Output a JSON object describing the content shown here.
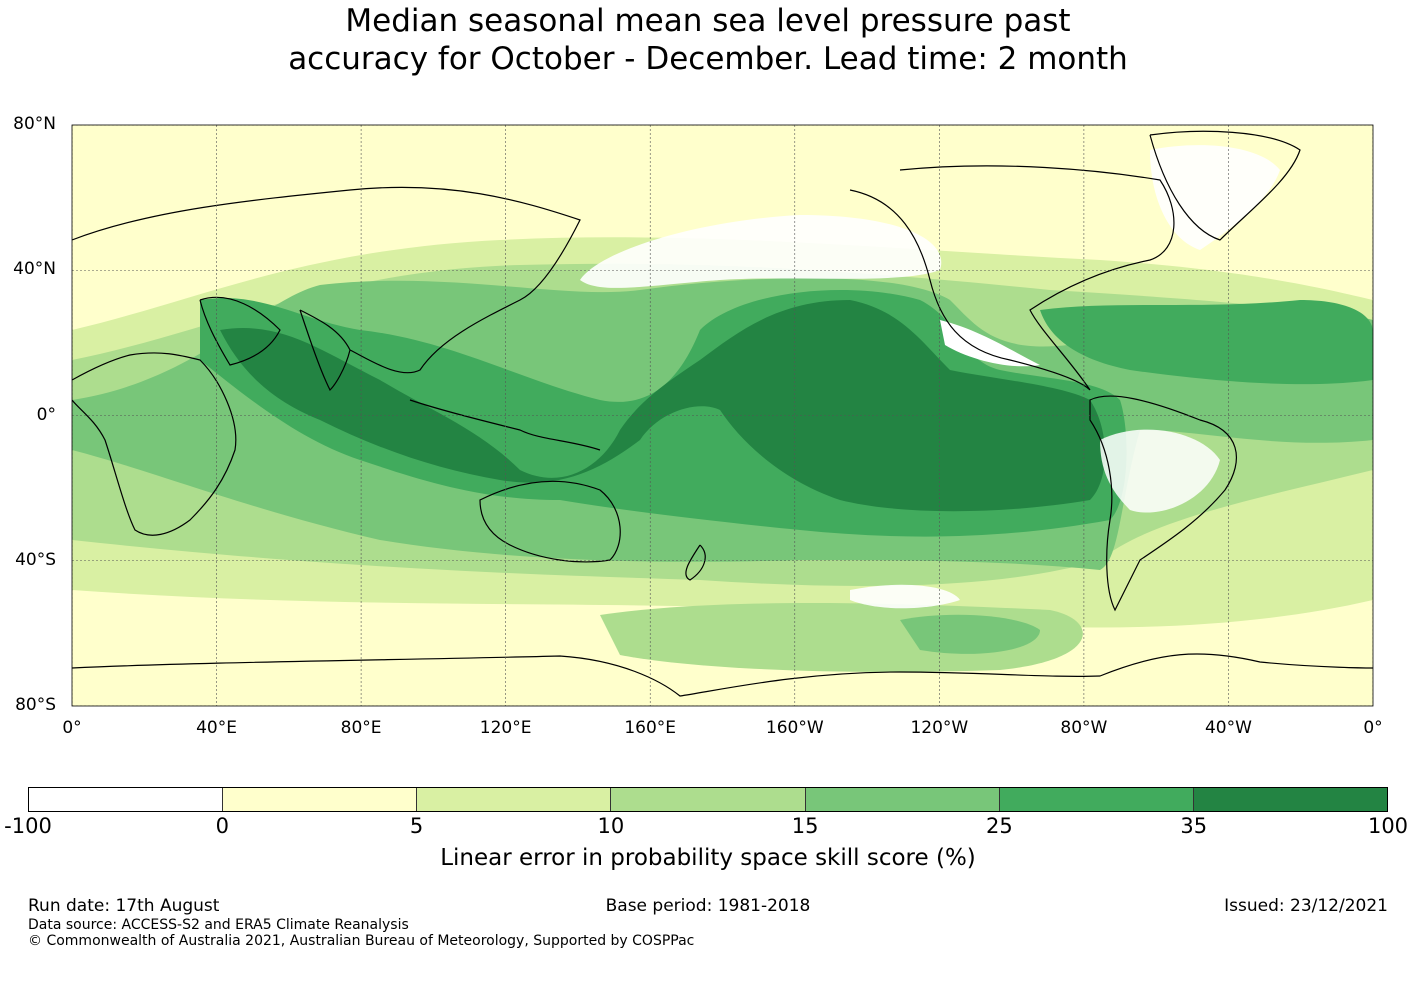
{
  "title": {
    "line1": "Median seasonal mean sea level pressure past",
    "line2": "accuracy for October - December. Lead time: 2 month"
  },
  "map": {
    "lat_labels": [
      "80°N",
      "40°N",
      "0°",
      "40°S",
      "80°S"
    ],
    "lat_values": [
      80,
      40,
      0,
      -40,
      -80
    ],
    "lon_labels": [
      "0°",
      "40°E",
      "80°E",
      "120°E",
      "160°E",
      "160°W",
      "120°W",
      "80°W",
      "40°W",
      "0°"
    ],
    "lon_values": [
      0,
      40,
      80,
      120,
      160,
      200,
      240,
      280,
      320,
      360
    ],
    "grid": true,
    "extent": {
      "lon": [
        0,
        360
      ],
      "lat": [
        -80,
        80
      ]
    }
  },
  "colorbar": {
    "ticks": [
      "-100",
      "0",
      "5",
      "10",
      "15",
      "25",
      "35",
      "100"
    ],
    "colors": [
      "#ffffff",
      "#ffffcc",
      "#d9f0a3",
      "#addd8e",
      "#78c679",
      "#41ab5d",
      "#238443"
    ],
    "label": "Linear error in probability space skill score (%)"
  },
  "footer": {
    "run_date": "Run date: 17th August",
    "base_period": "Base period: 1981-2018",
    "issued": "Issued: 23/12/2021",
    "data_source": "Data source: ACCESS-S2 and ERA5 Climate Reanalysis",
    "copyright": "© Commonwealth of Australia 2021, Australian Bureau of Meteorology, Supported by COSPPac"
  }
}
